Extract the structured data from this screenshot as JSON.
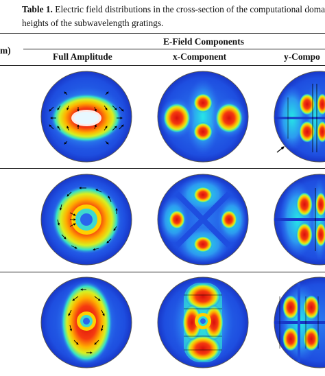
{
  "caption": {
    "label": "Table 1.",
    "line1": "Electric field distributions in the cross-section of the computational doma",
    "line2": "heights of the subwavelength gratings."
  },
  "table": {
    "row_header_fragment": "m)",
    "group_header": "E-Field Components",
    "columns": [
      "Full Amplitude",
      "x-Component",
      "y-Compo"
    ],
    "colors": {
      "background_blue": "#1b3fd8",
      "hot_red": "#e8120f",
      "rule": "#222222"
    },
    "rows": [
      {
        "name": "row-1",
        "cells": [
          "full-amplitude-ring",
          "x-component-lobes",
          "y-component-bands"
        ]
      },
      {
        "name": "row-2",
        "cells": [
          "full-amplitude-donut",
          "x-component-quad",
          "y-component-bands"
        ]
      },
      {
        "name": "row-3",
        "cells": [
          "full-amplitude-column",
          "x-component-column",
          "y-component-quad"
        ]
      }
    ]
  }
}
